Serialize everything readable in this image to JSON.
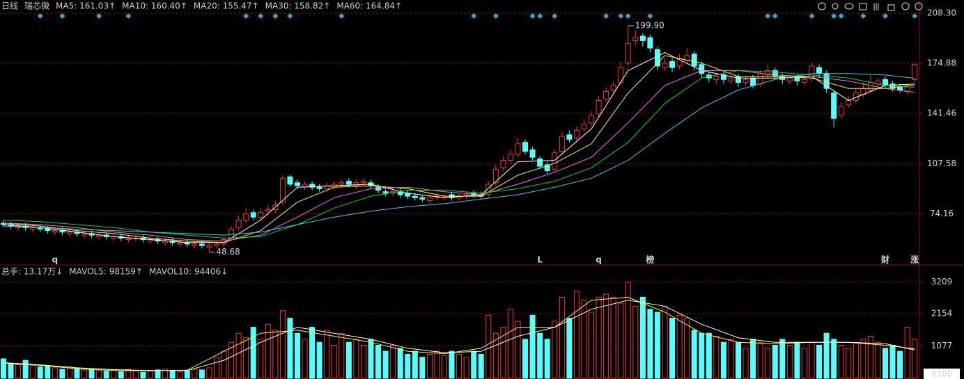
{
  "header": {
    "period": "日线",
    "name": "瑞芯微"
  },
  "chart_data": [
    {
      "type": "candlestick",
      "ylim": [
        40.5,
        212.5
      ],
      "yticks": [
        {
          "value": 208.3,
          "label": "208.30"
        },
        174.88,
        141.46,
        107.58,
        74.16
      ],
      "grid": true,
      "up_color": "#ff3232",
      "down_color": "#54ffff",
      "open": [
        68,
        67,
        65,
        66,
        64,
        65,
        64,
        62,
        63,
        61,
        62,
        60,
        61,
        59,
        60,
        58,
        59,
        57,
        58,
        58,
        56,
        57,
        55,
        56,
        54,
        55,
        53,
        54,
        52,
        53,
        54,
        58,
        65,
        70,
        75,
        72,
        76,
        77,
        82,
        99,
        95,
        92,
        94,
        92,
        91,
        92,
        94,
        96,
        93,
        95,
        95,
        92,
        89,
        88,
        89,
        88,
        86,
        85,
        83,
        85,
        85,
        87,
        85,
        86,
        88,
        87,
        87,
        95,
        105,
        110,
        114,
        122,
        117,
        111,
        107,
        104,
        116,
        127,
        125,
        131,
        135,
        141,
        151,
        157,
        162,
        175,
        190,
        193,
        192,
        184,
        172,
        176,
        173,
        177,
        181,
        174,
        167,
        164,
        167,
        163,
        166,
        162,
        165,
        161,
        167,
        170,
        166,
        163,
        166,
        162,
        165,
        172,
        168,
        155,
        140,
        147,
        150,
        154,
        157,
        161,
        164,
        161,
        159,
        156,
        164
      ],
      "high": [
        70,
        69,
        68,
        68,
        67,
        67,
        66,
        65,
        65,
        64,
        64,
        63,
        63,
        62,
        62,
        61,
        61,
        60,
        60,
        60,
        59,
        59,
        58,
        58,
        57,
        57,
        56,
        56,
        55,
        56,
        59,
        66,
        73,
        78,
        77,
        78,
        80,
        83,
        100,
        100,
        97,
        96,
        96,
        94,
        95,
        96,
        97,
        98,
        97,
        98,
        97,
        94,
        91,
        91,
        91,
        90,
        88,
        87,
        87,
        88,
        88,
        89,
        88,
        89,
        90,
        89,
        96,
        107,
        113,
        117,
        125,
        124,
        119,
        113,
        109,
        117,
        129,
        130,
        133,
        137,
        143,
        153,
        159,
        163,
        176,
        199.9,
        197,
        195,
        194,
        186,
        178,
        178,
        181,
        185,
        183,
        176,
        169,
        168,
        169,
        167,
        168,
        166,
        167,
        170,
        174,
        172,
        168,
        167,
        168,
        166,
        175,
        174,
        170,
        157,
        149,
        153,
        158,
        162,
        167,
        165,
        166,
        163,
        161,
        161,
        175
      ],
      "low": [
        65,
        64,
        63,
        63,
        62,
        62,
        61,
        60,
        60,
        59,
        59,
        58,
        58,
        57,
        57,
        56,
        56,
        55,
        56,
        55,
        54,
        54,
        53,
        53,
        52,
        52,
        51,
        51,
        48.68,
        51,
        52,
        56,
        63,
        68,
        70,
        70,
        73,
        75,
        80,
        92,
        91,
        90,
        90,
        89,
        89,
        90,
        92,
        92,
        91,
        93,
        91,
        88,
        86,
        86,
        85,
        84,
        83,
        82,
        81,
        83,
        83,
        83,
        83,
        84,
        85,
        84,
        85,
        93,
        103,
        108,
        112,
        114,
        110,
        104,
        101,
        102,
        114,
        122,
        123,
        129,
        133,
        139,
        149,
        155,
        160,
        173,
        187,
        186,
        182,
        170,
        170,
        169,
        171,
        175,
        170,
        165,
        162,
        161,
        161,
        161,
        159,
        160,
        158,
        159,
        165,
        164,
        161,
        161,
        160,
        160,
        163,
        165,
        155,
        132,
        138,
        145,
        148,
        152,
        155,
        159,
        158,
        156,
        155,
        154,
        162
      ],
      "close": [
        67,
        66,
        66,
        65,
        65,
        64,
        63,
        63,
        62,
        62,
        61,
        61,
        60,
        60,
        59,
        59,
        58,
        58,
        58,
        57,
        57,
        56,
        56,
        55,
        55,
        54,
        54,
        53,
        53,
        54,
        57,
        64,
        70,
        74,
        72,
        75,
        77,
        80,
        98,
        94,
        93,
        94,
        92,
        91,
        93,
        94,
        95,
        94,
        95,
        96,
        93,
        90,
        88,
        89,
        87,
        86,
        85,
        84,
        85,
        86,
        86,
        85,
        86,
        87,
        87,
        86,
        94,
        104,
        110,
        114,
        121,
        116,
        112,
        106,
        103,
        115,
        126,
        124,
        130,
        134,
        140,
        150,
        156,
        160,
        172,
        188,
        192,
        190,
        185,
        173,
        175,
        172,
        178,
        180,
        173,
        168,
        165,
        166,
        164,
        165,
        162,
        164,
        160,
        168,
        170,
        166,
        164,
        165,
        163,
        164,
        173,
        168,
        158,
        138,
        146,
        150,
        155,
        158,
        162,
        163,
        160,
        158,
        157,
        159,
        174
      ],
      "ma_x": [
        0,
        5,
        10,
        15,
        20,
        25,
        30,
        35,
        40,
        45,
        50,
        55,
        60,
        65,
        70,
        75,
        80,
        85,
        90,
        95,
        100,
        105,
        110,
        115,
        120,
        124
      ],
      "series": [
        {
          "name": "MA5: 161.03↑",
          "color": "#ffffff",
          "values": [
            67,
            65,
            62,
            59,
            57,
            55,
            55,
            70,
            92,
            93,
            94,
            88,
            85,
            87,
            109,
            110,
            131,
            170,
            182,
            170,
            165,
            165,
            166,
            150,
            160,
            161.03
          ]
        },
        {
          "name": "MA10: 160.40↑",
          "color": "#ffff00",
          "values": [
            68,
            66,
            63,
            61,
            58,
            56,
            55,
            63,
            82,
            92,
            93,
            91,
            86,
            86,
            100,
            108,
            121,
            155,
            180,
            175,
            166,
            166,
            165,
            158,
            158,
            160.4
          ]
        },
        {
          "name": "MA20: 155.47↑",
          "color": "#ff66ff",
          "values": [
            68,
            67,
            65,
            62,
            60,
            57,
            56,
            60,
            72,
            85,
            91,
            92,
            89,
            87,
            94,
            102,
            112,
            135,
            160,
            170,
            170,
            167,
            166,
            163,
            158,
            155.47
          ]
        },
        {
          "name": "MA30: 158.82↑",
          "color": "#00e000",
          "values": [
            70,
            69,
            67,
            65,
            62,
            60,
            58,
            59,
            67,
            78,
            86,
            90,
            90,
            88,
            91,
            96,
            105,
            122,
            148,
            165,
            170,
            169,
            167,
            165,
            160,
            158.82
          ]
        },
        {
          "name": "MA60: 164.84↑",
          "color": "#3cc8f0",
          "values": [
            66,
            65,
            64,
            63,
            62,
            61,
            60,
            62,
            67,
            72,
            76,
            79,
            81,
            84,
            87,
            92,
            98,
            110,
            128,
            145,
            157,
            164,
            168,
            168,
            167,
            164.84
          ]
        }
      ],
      "annotations": [
        {
          "text": "199.90",
          "x": 85,
          "anchor": "high"
        },
        {
          "text": "48.68",
          "x": 28,
          "anchor": "low"
        }
      ],
      "markers": [
        {
          "text": "q",
          "x": 7,
          "color": "#ff3232"
        },
        {
          "text": "L",
          "x": 73,
          "color": "#3cc8f0"
        },
        {
          "text": "q",
          "x": 81,
          "color": "#ff3232"
        },
        {
          "text": "榜",
          "x": 88,
          "color": "#ff3232"
        },
        {
          "text": "财",
          "x": 120,
          "color": "#ff3232"
        },
        {
          "text": "涨",
          "x": 124,
          "color": "#ff3232"
        }
      ],
      "signals": {
        "color": "#2fa8d8",
        "x": [
          5,
          8,
          13,
          17,
          33,
          35,
          37,
          39,
          46,
          64,
          67,
          72,
          73,
          75,
          82,
          84,
          85,
          88,
          104,
          105,
          110,
          113,
          114,
          117,
          120,
          124
        ]
      }
    },
    {
      "type": "bar",
      "title": "总手: 13.17万↓",
      "unit_label": "X100",
      "ylim": [
        0,
        3450
      ],
      "yticks": [
        3209,
        2154,
        1077
      ],
      "grid": true,
      "values": [
        650,
        500,
        450,
        600,
        420,
        380,
        400,
        350,
        300,
        380,
        340,
        280,
        300,
        260,
        240,
        280,
        220,
        300,
        260,
        200,
        240,
        280,
        300,
        260,
        220,
        250,
        300,
        280,
        350,
        700,
        900,
        1200,
        1500,
        1350,
        1700,
        1300,
        1800,
        1600,
        2250,
        2000,
        1500,
        1300,
        1700,
        1200,
        1600,
        1100,
        1500,
        1200,
        1300,
        1100,
        1300,
        1100,
        900,
        1100,
        1000,
        800,
        900,
        700,
        800,
        900,
        750,
        900,
        800,
        700,
        900,
        800,
        2100,
        1500,
        1700,
        2300,
        1900,
        1300,
        2100,
        1500,
        1300,
        1900,
        2700,
        2000,
        2900,
        2600,
        2200,
        2700,
        2800,
        2700,
        2500,
        3200,
        2400,
        2700,
        2300,
        2200,
        2400,
        2000,
        2100,
        2000,
        1600,
        1500,
        1500,
        1400,
        1200,
        1300,
        1200,
        1000,
        1300,
        1200,
        1000,
        1100,
        1300,
        1100,
        1200,
        1000,
        1200,
        1100,
        1500,
        1300,
        1100,
        1000,
        1200,
        1300,
        1400,
        1200,
        1000,
        1100,
        900,
        1700,
        1300
      ],
      "ma_x": [
        0,
        5,
        10,
        15,
        20,
        25,
        30,
        35,
        40,
        45,
        50,
        55,
        60,
        65,
        70,
        75,
        80,
        85,
        90,
        95,
        100,
        105,
        110,
        115,
        120,
        124
      ],
      "series": [
        {
          "name": "MAVOL5: 98159↑",
          "color": "#ffff00",
          "values": [
            500,
            430,
            320,
            260,
            250,
            270,
            900,
            1500,
            1600,
            1400,
            1200,
            900,
            820,
            1000,
            1700,
            1700,
            2600,
            2700,
            2200,
            1500,
            1200,
            1150,
            1200,
            1200,
            1100,
            982
          ]
        },
        {
          "name": "MAVOL10: 94406↓",
          "color": "#ffffff",
          "values": [
            520,
            450,
            350,
            290,
            260,
            260,
            600,
            1200,
            1700,
            1500,
            1300,
            1000,
            850,
            900,
            1400,
            1700,
            2300,
            2600,
            2400,
            1800,
            1350,
            1200,
            1200,
            1200,
            1150,
            944
          ]
        }
      ]
    }
  ]
}
